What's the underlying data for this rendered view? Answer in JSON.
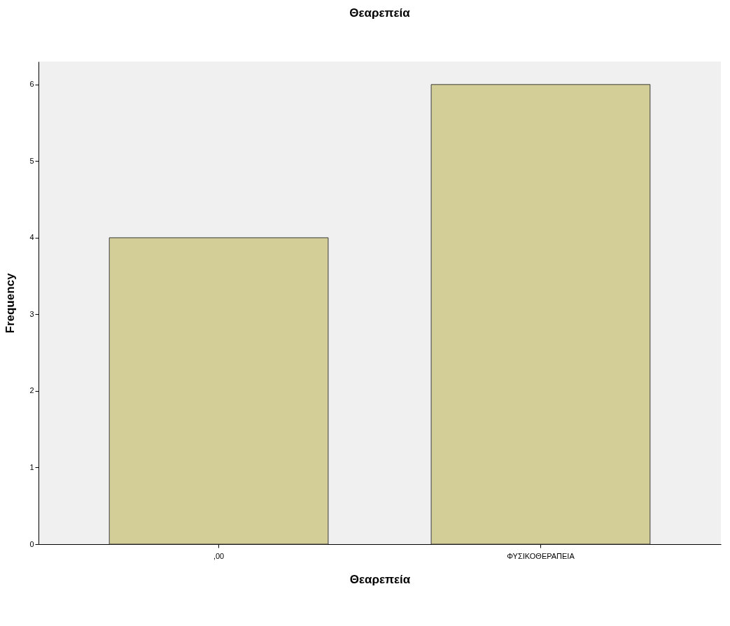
{
  "chart_data": {
    "type": "bar",
    "title": "Θεαρεπεία",
    "xlabel": "Θεαρεπεία",
    "ylabel": "Frequency",
    "categories": [
      ",00",
      "ΦΥΣΙΚΟΘΕΡΑΠΕΙΑ"
    ],
    "values": [
      4,
      6
    ],
    "color": "#d3ce97",
    "ylim": [
      0,
      6.3
    ],
    "yticks": [
      0,
      1,
      2,
      3,
      4,
      5,
      6
    ]
  }
}
